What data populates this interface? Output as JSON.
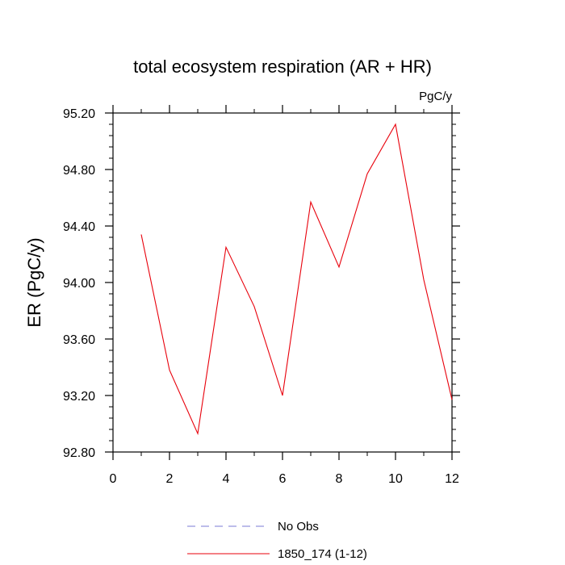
{
  "chart_data": {
    "type": "line",
    "title": "total ecosystem respiration (AR + HR)",
    "units": "PgC/y",
    "ylabel": "ER  (PgC/y)",
    "xlabel": "",
    "xlim": [
      0,
      12
    ],
    "ylim": [
      92.8,
      95.2
    ],
    "x_ticks": [
      "0",
      "2",
      "4",
      "6",
      "8",
      "10",
      "12"
    ],
    "y_ticks": [
      "92.80",
      "93.20",
      "93.60",
      "94.00",
      "94.40",
      "94.80",
      "95.20"
    ],
    "grid": false,
    "legend_position": "bottom",
    "series": [
      {
        "name": "1850_174 (1-12)",
        "color": "#e8000b",
        "style": "solid",
        "x": [
          1,
          2,
          3,
          4,
          5,
          6,
          7,
          8,
          9,
          10,
          11,
          12
        ],
        "values": [
          94.34,
          93.38,
          92.93,
          94.25,
          93.83,
          93.2,
          94.57,
          94.11,
          94.77,
          95.12,
          94.02,
          93.17
        ]
      },
      {
        "name": "No Obs",
        "color": "#7b7bd6",
        "style": "dashed",
        "x": [],
        "values": []
      }
    ]
  }
}
